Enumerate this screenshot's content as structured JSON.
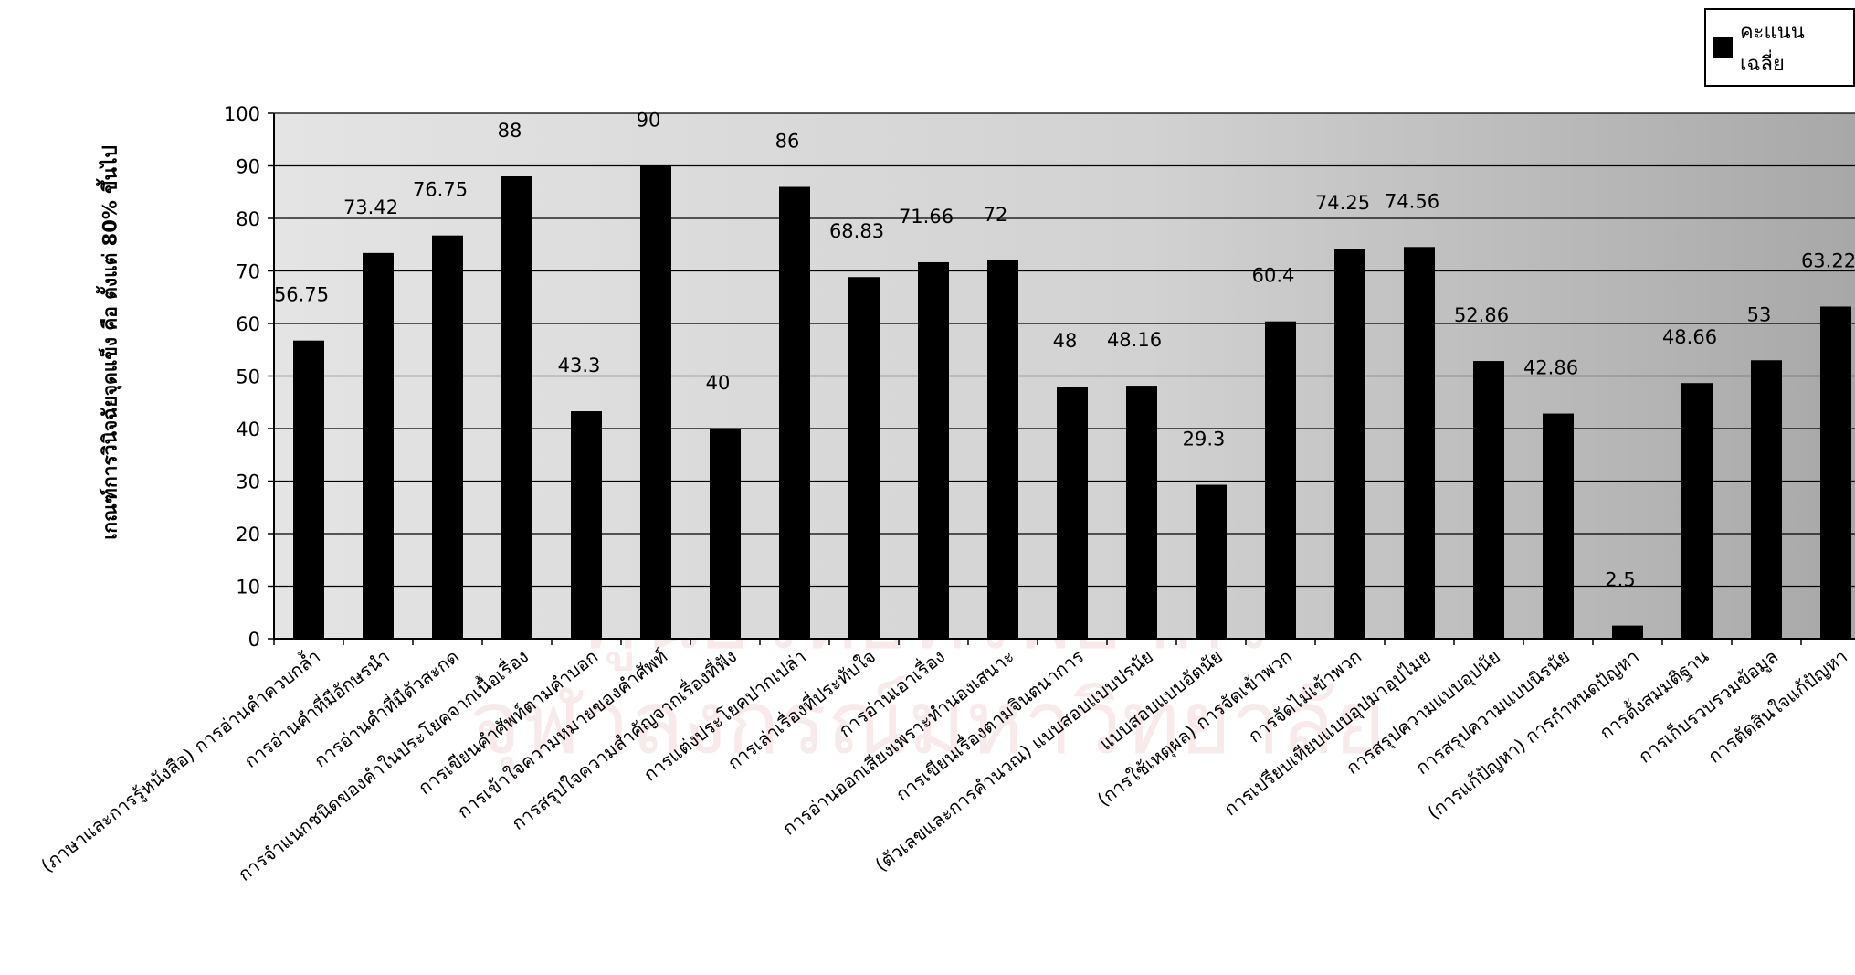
{
  "watermark": {
    "line1": "ศูนย์วิทยทรัพยากร",
    "line2": "จุฬาลงกรณ์มหาวิทยาลัย"
  },
  "colors": {
    "bar": "#000000",
    "plot_background": "#cfcfcf",
    "grid": "#000000"
  },
  "chart_data": {
    "type": "bar",
    "title": "",
    "xlabel": "",
    "ylabel": "เกณฑ์การวินิจฉัยจุดแข็ง คือ ตั้งแต่ 80% ขึ้นไป",
    "ylim": [
      0,
      100
    ],
    "yticks": [
      0,
      10,
      20,
      30,
      40,
      50,
      60,
      70,
      80,
      90,
      100
    ],
    "grid": true,
    "legend": {
      "position": "top-right",
      "entries": [
        "คะแนนเฉลี่ย"
      ]
    },
    "categories": [
      "(ภาษาและการรู้หนังสือ) การอ่านคำควบกล้ำ",
      "การอ่านคำที่มีอักษรนำ",
      "การอ่านคำที่มีตัวสะกด",
      "การจำแนกชนิดของคำในประโยคจากเนื้อเรื่อง",
      "การเขียนคำศัพท์ตามคำบอก",
      "การเข้าใจความหมายของคำศัพท์",
      "การสรุปใจความสำคัญจากเรื่องที่ฟัง",
      "การแต่งประโยคปากเปล่า",
      "การเล่าเรื่องที่ประทับใจ",
      "การอ่านเอาเรื่อง",
      "การอ่านออกเสียงเพราะทำนองเสนาะ",
      "การเขียนเรื่องตามจินตนาการ",
      "(ตัวเลขและการคำนวณ) แบบสอบแบบปรนัย",
      "แบบสอบแบบอัตนัย",
      "(การใช้เหตุผล) การจัดเข้าพวก",
      "การจัดไม่เข้าพวก",
      "การเปรียบเทียบแบบอุปมาอุปไมย",
      "การสรุปความแบบอุปนัย",
      "การสรุปความแบบนิรนัย",
      "(การแก้ปัญหา) การกำหนดปัญหา",
      "การตั้งสมมติฐาน",
      "การเก็บรวบรวมข้อมูล",
      "การตัดสินใจแก้ปัญหา"
    ],
    "series": [
      {
        "name": "คะแนนเฉลี่ย",
        "values": [
          56.75,
          73.42,
          76.75,
          88,
          43.3,
          90,
          40,
          86,
          68.83,
          71.66,
          72,
          48,
          48.16,
          29.3,
          60.4,
          74.25,
          74.56,
          52.86,
          42.86,
          2.5,
          48.66,
          53,
          63.22
        ],
        "labels": [
          "56.75",
          "73.42",
          "76.75",
          "88",
          "43.3",
          "90",
          "40",
          "86",
          "68.83",
          "71.66",
          "72",
          "48",
          "48.16",
          "29.3",
          "60.4",
          "74.25",
          "74.56",
          "52.86",
          "42.86",
          "2.5",
          "48.66",
          "53",
          "63.22"
        ]
      }
    ]
  }
}
